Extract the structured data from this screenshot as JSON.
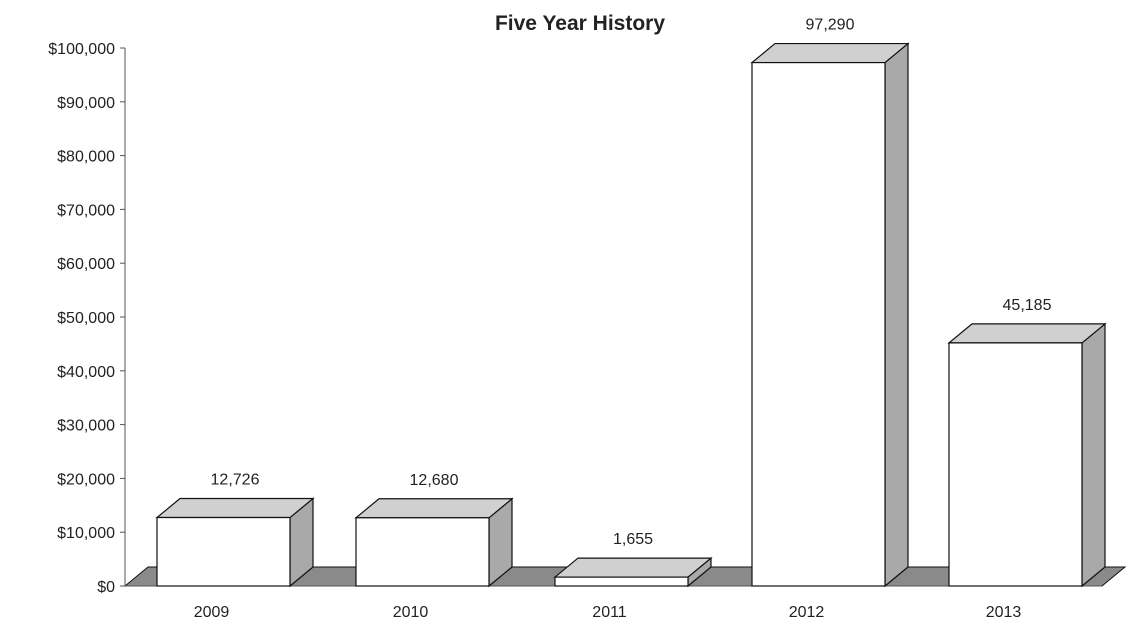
{
  "chart_data": {
    "type": "bar",
    "title": "Five Year History",
    "xlabel": "",
    "ylabel": "",
    "categories": [
      "2009",
      "2010",
      "2011",
      "2012",
      "2013"
    ],
    "values": [
      12726,
      12680,
      1655,
      97290,
      45185
    ],
    "data_labels": [
      "12,726",
      "12,680",
      "1,655",
      "97,290",
      "45,185"
    ],
    "ylim": [
      0,
      100000
    ],
    "yticks": [
      0,
      10000,
      20000,
      30000,
      40000,
      50000,
      60000,
      70000,
      80000,
      90000,
      100000
    ],
    "ytick_labels": [
      "$0",
      "$10,000",
      "$20,000",
      "$30,000",
      "$40,000",
      "$50,000",
      "$60,000",
      "$70,000",
      "$80,000",
      "$90,000",
      "$100,000"
    ],
    "grid": false,
    "legend": "none",
    "style": "3d-column",
    "colors": {
      "bar_front": "#ffffff",
      "bar_side": "#a9a9a9",
      "bar_top": "#d0d0d0",
      "floor": "#8a8a8a",
      "outline": "#111111"
    }
  }
}
